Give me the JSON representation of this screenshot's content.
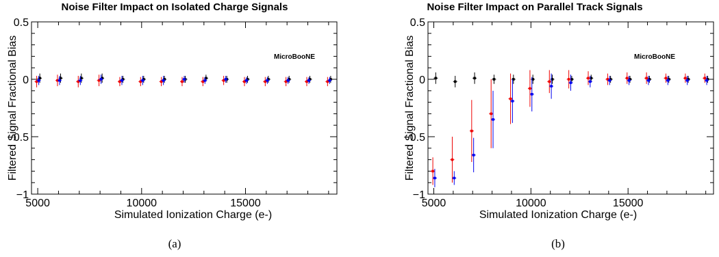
{
  "chart_data": [
    {
      "type": "scatter",
      "title": "Noise Filter Impact on Isolated Charge Signals",
      "xlabel": "Simulated Ionization Charge (e-)",
      "ylabel": "Filtered Signal Fractional Bias",
      "annotation": "MicroBooNE",
      "caption": "(a)",
      "xlim": [
        4700,
        19400
      ],
      "ylim": [
        -1,
        0.5
      ],
      "xticks": [
        "5000",
        "10000",
        "15000"
      ],
      "yticks": [
        "−1",
        "−0.5",
        "0",
        "0.5"
      ],
      "grid": false,
      "series": [
        {
          "color": "#000000",
          "x": [
            5100,
            6100,
            7100,
            8100,
            9100,
            10100,
            11100,
            12100,
            13100,
            14100,
            15100,
            16100,
            17100,
            18100,
            19100
          ],
          "y": [
            0.01,
            0.01,
            0.01,
            0.01,
            0.0,
            0.0,
            0.0,
            0.0,
            0.01,
            0.0,
            0.0,
            0.0,
            0.0,
            0.0,
            0.0
          ],
          "err": [
            0.04,
            0.04,
            0.04,
            0.04,
            0.03,
            0.03,
            0.03,
            0.03,
            0.03,
            0.03,
            0.03,
            0.03,
            0.03,
            0.03,
            0.03
          ]
        },
        {
          "color": "#ee0000",
          "x": [
            4950,
            5950,
            6950,
            7950,
            8950,
            9950,
            10950,
            11950,
            12950,
            13950,
            14950,
            15950,
            16950,
            17950,
            18950
          ],
          "y": [
            -0.02,
            -0.01,
            -0.02,
            -0.01,
            -0.02,
            -0.02,
            -0.02,
            -0.02,
            -0.02,
            -0.01,
            -0.02,
            -0.02,
            -0.02,
            -0.02,
            -0.02
          ],
          "err": [
            0.05,
            0.05,
            0.05,
            0.05,
            0.04,
            0.04,
            0.04,
            0.04,
            0.04,
            0.04,
            0.04,
            0.04,
            0.04,
            0.04,
            0.04
          ]
        },
        {
          "color": "#0000ee",
          "x": [
            5050,
            6050,
            7050,
            8050,
            9050,
            10050,
            11050,
            12050,
            13050,
            14050,
            15050,
            16050,
            17050,
            18050,
            19050
          ],
          "y": [
            -0.01,
            -0.01,
            -0.01,
            0.0,
            -0.01,
            -0.01,
            -0.01,
            0.0,
            -0.01,
            0.0,
            -0.01,
            -0.01,
            -0.01,
            -0.01,
            -0.01
          ],
          "err": [
            0.04,
            0.04,
            0.04,
            0.04,
            0.04,
            0.04,
            0.04,
            0.03,
            0.03,
            0.03,
            0.03,
            0.03,
            0.03,
            0.03,
            0.03
          ]
        }
      ]
    },
    {
      "type": "scatter",
      "title": "Noise Filter Impact on Parallel Track Signals",
      "xlabel": "Simulated Ionization Charge (e-)",
      "ylabel": "Filtered Signal Fractional Bias",
      "annotation": "MicroBooNE",
      "caption": "(b)",
      "xlim": [
        4700,
        19400
      ],
      "ylim": [
        -1,
        0.5
      ],
      "xticks": [
        "5000",
        "10000",
        "15000"
      ],
      "yticks": [
        "−1",
        "−0.5",
        "0",
        "0.5"
      ],
      "grid": false,
      "series": [
        {
          "color": "#000000",
          "x": [
            5100,
            6100,
            7100,
            8100,
            9100,
            10100,
            11100,
            12100,
            13100,
            14100,
            15100,
            16100,
            17100,
            18100,
            19100
          ],
          "y": [
            0.01,
            -0.02,
            0.01,
            0.0,
            0.0,
            0.0,
            0.0,
            0.0,
            0.01,
            0.0,
            0.0,
            0.0,
            0.0,
            0.0,
            0.0
          ],
          "err": [
            0.05,
            0.05,
            0.05,
            0.04,
            0.04,
            0.04,
            0.04,
            0.03,
            0.03,
            0.03,
            0.03,
            0.03,
            0.03,
            0.03,
            0.03
          ]
        },
        {
          "color": "#ee0000",
          "x": [
            4950,
            5950,
            6950,
            7950,
            8950,
            9950,
            10950,
            11950,
            12950,
            13950,
            14950,
            15950,
            16950,
            17950,
            18950
          ],
          "y": [
            -0.8,
            -0.7,
            -0.45,
            -0.3,
            -0.17,
            -0.08,
            -0.02,
            0.0,
            0.01,
            0.0,
            0.01,
            0.01,
            0.01,
            0.01,
            0.01
          ],
          "err": [
            0.12,
            0.2,
            0.27,
            0.3,
            0.22,
            0.16,
            0.1,
            0.08,
            0.06,
            0.05,
            0.05,
            0.05,
            0.04,
            0.04,
            0.04
          ]
        },
        {
          "color": "#0000ee",
          "x": [
            5050,
            6050,
            7050,
            8050,
            9050,
            10050,
            11050,
            12050,
            13050,
            14050,
            15050,
            16050,
            17050,
            18050,
            19050
          ],
          "y": [
            -0.86,
            -0.86,
            -0.66,
            -0.35,
            -0.19,
            -0.13,
            -0.06,
            -0.03,
            -0.02,
            -0.01,
            -0.01,
            -0.01,
            -0.01,
            -0.01,
            -0.01
          ],
          "err": [
            0.08,
            0.06,
            0.15,
            0.25,
            0.19,
            0.15,
            0.11,
            0.07,
            0.05,
            0.04,
            0.04,
            0.04,
            0.04,
            0.04,
            0.04
          ]
        }
      ]
    }
  ]
}
